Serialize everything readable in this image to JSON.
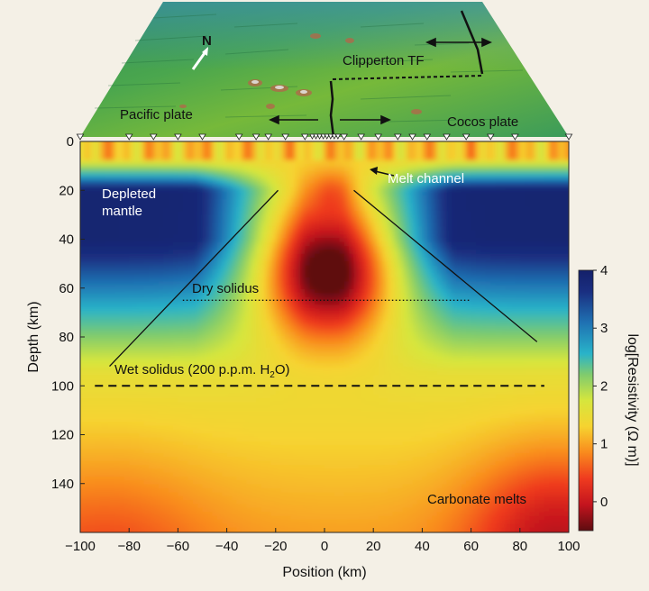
{
  "bathymetry_labels": {
    "north": "N",
    "clipperton": "Clipperton TF",
    "pacific": "Pacific plate",
    "cocos": "Cocos plate"
  },
  "annotations": {
    "melt_channel": "Melt channel",
    "depleted_line1": "Depleted",
    "depleted_line2": "mantle",
    "dry_solidus": "Dry solidus",
    "wet_solidus_main": "Wet solidus (200 p.p.m. H",
    "wet_solidus_sub": "2",
    "wet_solidus_end": "O)",
    "carbonate": "Carbonate melts"
  },
  "axes": {
    "x_label": "Position (km)",
    "y_label": "Depth (km)",
    "colorbar_label": "log[Resistivity (Ω m)]",
    "x_ticks": [
      "−100",
      "−80",
      "−60",
      "−40",
      "−20",
      "0",
      "20",
      "40",
      "60",
      "80",
      "100"
    ],
    "y_ticks": [
      "0",
      "20",
      "40",
      "60",
      "80",
      "100",
      "120",
      "140"
    ],
    "colorbar_ticks": [
      "0",
      "1",
      "2",
      "3",
      "4"
    ]
  },
  "model": {
    "x_range": [
      -100,
      100
    ],
    "depth_range": [
      0,
      160
    ],
    "resistivity_range": [
      -0.5,
      4
    ],
    "dry_solidus_depth_km": 65,
    "dry_solidus_x_km": [
      -58,
      60
    ],
    "wet_solidus_depth_km": 100,
    "wet_solidus_x_km": [
      -94,
      90
    ],
    "melt_triangle_left": [
      [
        -88,
        92
      ],
      [
        -19,
        20
      ]
    ],
    "melt_triangle_right": [
      [
        12,
        20
      ],
      [
        87,
        82
      ]
    ],
    "stations_x_km": [
      -100,
      -80,
      -70,
      -60,
      -50,
      -35,
      -28,
      -23,
      -16,
      -8,
      8,
      15,
      22,
      30,
      36,
      42,
      50,
      58,
      68,
      78,
      100
    ],
    "stations_dense_x_km": [
      -5,
      -3.5,
      -2,
      -0.5,
      1,
      2.5,
      4,
      5.5
    ]
  },
  "colors": {
    "cmap": [
      "#5e0c10",
      "#c4141e",
      "#ef3b1f",
      "#f98a1d",
      "#f6d330",
      "#d6e63d",
      "#7fcb6e",
      "#29b3c9",
      "#1f71b2",
      "#1a2e80",
      "#14206a"
    ]
  }
}
